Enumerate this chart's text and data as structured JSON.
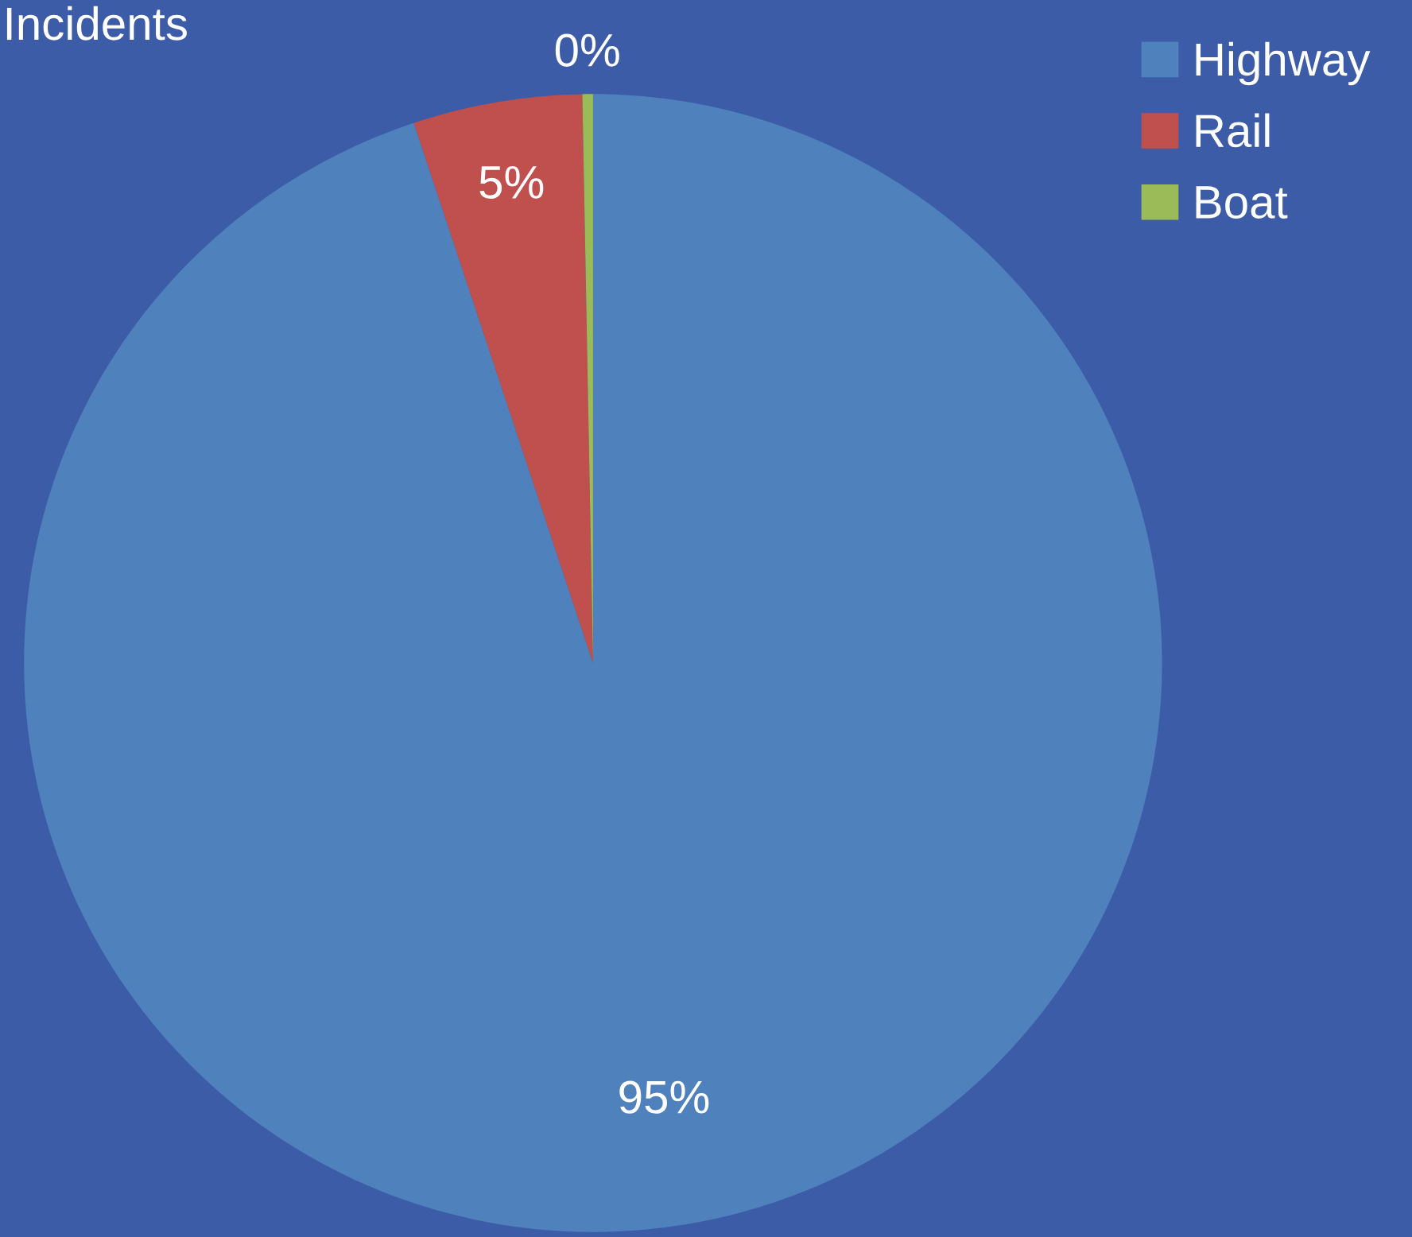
{
  "chart_data": {
    "type": "pie",
    "title": "Incidents",
    "categories": [
      "Highway",
      "Rail",
      "Boat"
    ],
    "values": [
      94.9,
      4.8,
      0.3
    ],
    "value_labels": [
      "95%",
      "5%",
      "0%"
    ],
    "colors": [
      "#4f81bd",
      "#c0504d",
      "#9bbb59"
    ],
    "legend": "top right"
  }
}
